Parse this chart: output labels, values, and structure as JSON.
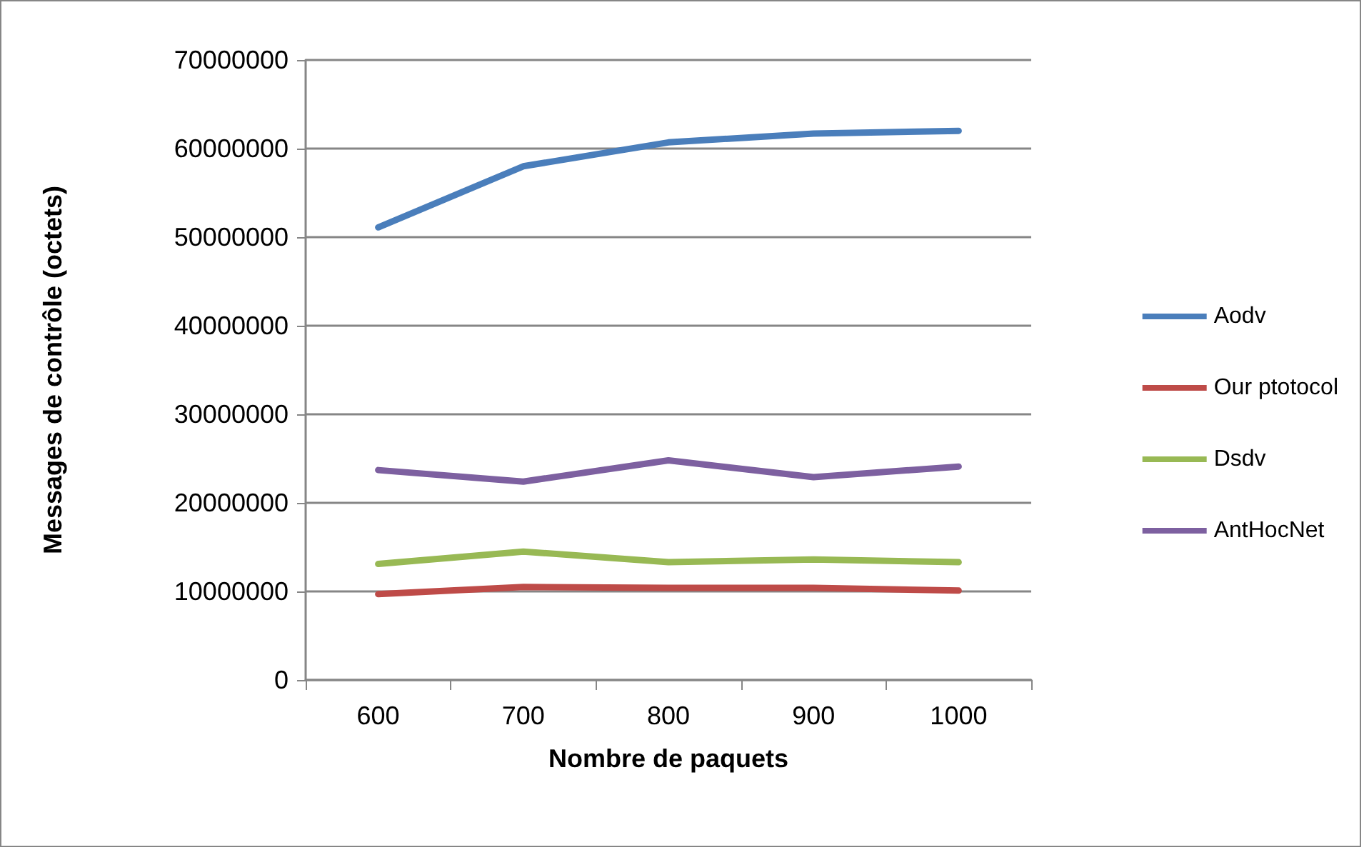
{
  "chart_data": {
    "type": "line",
    "xlabel": "Nombre de paquets",
    "ylabel": "Messages de contrôle (octets)",
    "categories": [
      "600",
      "700",
      "800",
      "900",
      "1000"
    ],
    "ylim": [
      0,
      70000000
    ],
    "yticks": [
      0,
      10000000,
      20000000,
      30000000,
      40000000,
      50000000,
      60000000,
      70000000
    ],
    "grid": "y",
    "legend": "right",
    "marker": "none",
    "line_style": "solid",
    "series": [
      {
        "name": "Aodv",
        "color": "#4a7ebb",
        "values": [
          51100000,
          58000000,
          60700000,
          61700000,
          62000000
        ]
      },
      {
        "name": "Our ptotocol",
        "color": "#be4b48",
        "values": [
          9700000,
          10500000,
          10400000,
          10400000,
          10100000
        ]
      },
      {
        "name": "Dsdv",
        "color": "#98b954",
        "values": [
          13100000,
          14500000,
          13300000,
          13600000,
          13300000
        ]
      },
      {
        "name": "AntHocNet",
        "color": "#7d60a0",
        "values": [
          23700000,
          22400000,
          24800000,
          22900000,
          24100000
        ]
      }
    ]
  }
}
